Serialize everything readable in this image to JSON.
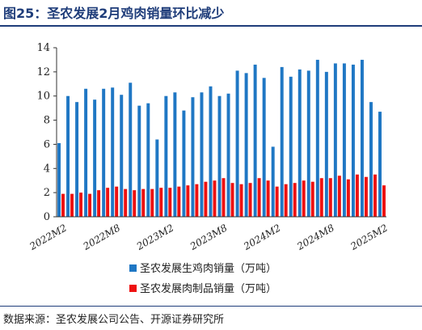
{
  "title": "图25：圣农发展2月鸡肉销量环比减少",
  "source": "数据来源：圣农发展公司公告、开源证券研究所",
  "colors": {
    "chicken": "#1f77c4",
    "processed": "#ee1111",
    "title": "#1f3d7a"
  },
  "chart_data": {
    "type": "bar",
    "title": "",
    "xlabel": "",
    "ylabel": "",
    "ylim": [
      0,
      14
    ],
    "yticks": [
      0,
      2,
      4,
      6,
      8,
      10,
      12,
      14
    ],
    "grid": false,
    "legend_position": "bottom",
    "categories": [
      "2022M2",
      "2022M3",
      "2022M4",
      "2022M5",
      "2022M6",
      "2022M7",
      "2022M8",
      "2022M9",
      "2022M10",
      "2022M11",
      "2022M12",
      "2023M1",
      "2023M2",
      "2023M3",
      "2023M4",
      "2023M5",
      "2023M6",
      "2023M7",
      "2023M8",
      "2023M9",
      "2023M10",
      "2023M11",
      "2023M12",
      "2024M1",
      "2024M2",
      "2024M3",
      "2024M4",
      "2024M5",
      "2024M6",
      "2024M7",
      "2024M8",
      "2024M9",
      "2024M10",
      "2024M11",
      "2024M12",
      "2025M1",
      "2025M2"
    ],
    "x_tick_labels": [
      "2022M2",
      "2022M8",
      "2023M2",
      "2023M8",
      "2024M2",
      "2024M8",
      "2025M2"
    ],
    "series": [
      {
        "name": "圣农发展生鸡肉销量（万吨）",
        "values": [
          6.1,
          10.0,
          9.5,
          10.6,
          9.7,
          10.6,
          10.7,
          10.1,
          11.1,
          9.2,
          9.4,
          6.4,
          10.0,
          10.3,
          8.8,
          9.9,
          10.3,
          10.8,
          10.0,
          10.2,
          12.1,
          11.9,
          12.6,
          11.5,
          5.8,
          12.4,
          11.6,
          12.2,
          12.1,
          13.0,
          12.0,
          12.7,
          12.7,
          12.6,
          13.0,
          9.5,
          8.7
        ]
      },
      {
        "name": "圣农发展肉制品销量（万吨）",
        "values": [
          1.9,
          1.9,
          2.0,
          1.9,
          2.2,
          2.4,
          2.5,
          2.3,
          2.2,
          2.3,
          2.3,
          2.4,
          2.4,
          2.5,
          2.6,
          2.7,
          2.9,
          3.0,
          3.2,
          2.8,
          2.7,
          2.8,
          3.2,
          3.0,
          2.5,
          2.7,
          2.8,
          3.0,
          2.9,
          3.2,
          3.2,
          3.4,
          3.1,
          3.5,
          3.3,
          3.5,
          2.6
        ]
      }
    ]
  }
}
